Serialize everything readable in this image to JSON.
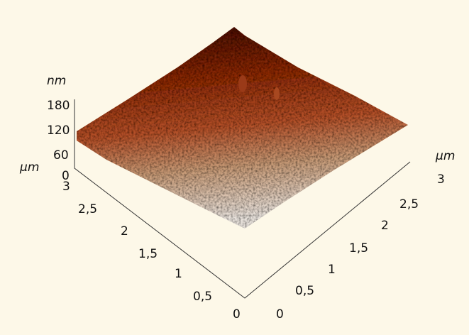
{
  "z_axis": {
    "unit": "nm",
    "ticks": [
      "180",
      "120",
      "60",
      "0"
    ]
  },
  "x_axis": {
    "unit": "µm",
    "ticks": [
      "3",
      "2,5",
      "2",
      "1,5",
      "1",
      "0,5",
      "0"
    ]
  },
  "y_axis": {
    "unit": "µm",
    "ticks": [
      "0",
      "0,5",
      "1",
      "1,5",
      "2",
      "2,5",
      "3"
    ]
  }
}
